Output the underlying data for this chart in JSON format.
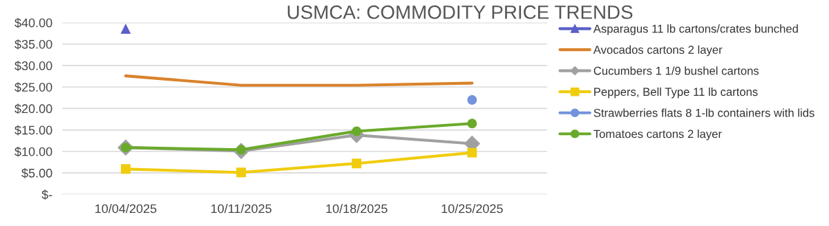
{
  "chart_data": {
    "type": "line",
    "title": "USMCA: COMMODITY PRICE TRENDS",
    "categories": [
      "10/04/2025",
      "10/11/2025",
      "10/18/2025",
      "10/25/2025"
    ],
    "series": [
      {
        "name": "Asparagus 11 lb cartons/crates bunched",
        "color": "#5b5fc7",
        "marker": "triangle",
        "values": [
          38.5,
          null,
          null,
          null
        ]
      },
      {
        "name": "Avocados cartons 2 layer",
        "color": "#d9822b",
        "marker": "none",
        "values": [
          27.6,
          25.4,
          25.4,
          25.9
        ]
      },
      {
        "name": "Cucumbers 1 1/9 bushel cartons",
        "color": "#a0a0a0",
        "marker": "diamond",
        "values": [
          10.9,
          10.1,
          13.8,
          11.8
        ]
      },
      {
        "name": "Peppers, Bell Type 11 lb cartons",
        "color": "#f0cc0f",
        "marker": "square",
        "values": [
          5.9,
          5.1,
          7.2,
          9.7
        ]
      },
      {
        "name": "Strawberries flats 8 1-lb containers with lids",
        "color": "#7393dc",
        "marker": "circle",
        "values": [
          null,
          null,
          null,
          22.0
        ]
      },
      {
        "name": "Tomatoes cartons 2 layer",
        "color": "#6aaa2a",
        "marker": "circle",
        "values": [
          10.9,
          10.4,
          14.7,
          16.5
        ]
      }
    ],
    "ylim": [
      0,
      40
    ],
    "yticks": [
      {
        "value": 0,
        "label": "$-"
      },
      {
        "value": 5,
        "label": "$5.00"
      },
      {
        "value": 10,
        "label": "$10.00"
      },
      {
        "value": 15,
        "label": "$15.00"
      },
      {
        "value": 20,
        "label": "$20.00"
      },
      {
        "value": 25,
        "label": "$25.00"
      },
      {
        "value": 30,
        "label": "$30.00"
      },
      {
        "value": 35,
        "label": "$35.00"
      },
      {
        "value": 40,
        "label": "$40.00"
      }
    ],
    "grid": "y",
    "legend": "right",
    "line_style": "solid"
  }
}
